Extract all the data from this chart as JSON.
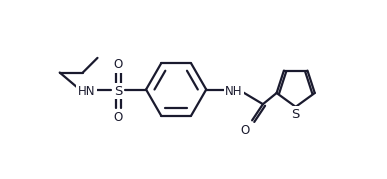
{
  "bg_color": "#ffffff",
  "line_color": "#1a1a2e",
  "line_width": 1.6,
  "font_size": 8.5,
  "figsize": [
    3.87,
    1.79
  ],
  "dpi": 100,
  "xlim": [
    0,
    10
  ],
  "ylim": [
    0,
    4.6
  ]
}
